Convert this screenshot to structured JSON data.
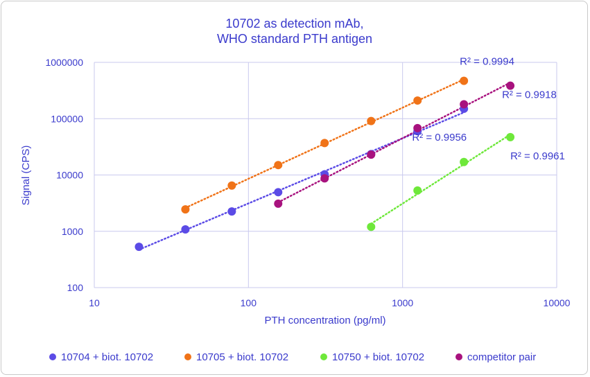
{
  "chart_data": {
    "type": "scatter",
    "title_lines": [
      "10702 as detection mAb,",
      "WHO standard PTH antigen"
    ],
    "xlabel": "PTH concentration (pg/ml)",
    "ylabel": "Signal (CPS)",
    "x_scale": "log",
    "y_scale": "log",
    "xlim": [
      10,
      10000
    ],
    "ylim": [
      100,
      1000000
    ],
    "x_ticks": [
      "10",
      "100",
      "1000",
      "10000"
    ],
    "y_ticks": [
      "100",
      "1000",
      "10000",
      "100000",
      "1000000"
    ],
    "grid": true,
    "legend_position": "bottom",
    "trendline": "power, dotted",
    "series": [
      {
        "name": "10704 + biot. 10702",
        "color": "#5b4be6",
        "x": [
          19.5,
          39,
          78,
          156,
          312,
          625,
          1250,
          2500
        ],
        "y": [
          530,
          1080,
          2250,
          4950,
          10300,
          23500,
          60000,
          150000
        ],
        "r2": "R² = 0.9956"
      },
      {
        "name": "10705 + biot. 10702",
        "color": "#f07318",
        "x": [
          39,
          78,
          156,
          312,
          625,
          1250,
          2500
        ],
        "y": [
          2450,
          6500,
          15000,
          37000,
          91000,
          210000,
          470000
        ],
        "r2": "R² = 0.9994"
      },
      {
        "name": "10750 + biot. 10702",
        "color": "#6ee83a",
        "x": [
          625,
          1250,
          2500,
          5000
        ],
        "y": [
          1200,
          5300,
          17000,
          47000
        ],
        "r2": "R² = 0.9961"
      },
      {
        "name": "competitor pair",
        "color": "#a8127e",
        "x": [
          156,
          312,
          625,
          1250,
          2500,
          5000
        ],
        "y": [
          3100,
          8700,
          23000,
          68000,
          180000,
          385000
        ],
        "r2": "R² = 0.9918"
      }
    ]
  }
}
